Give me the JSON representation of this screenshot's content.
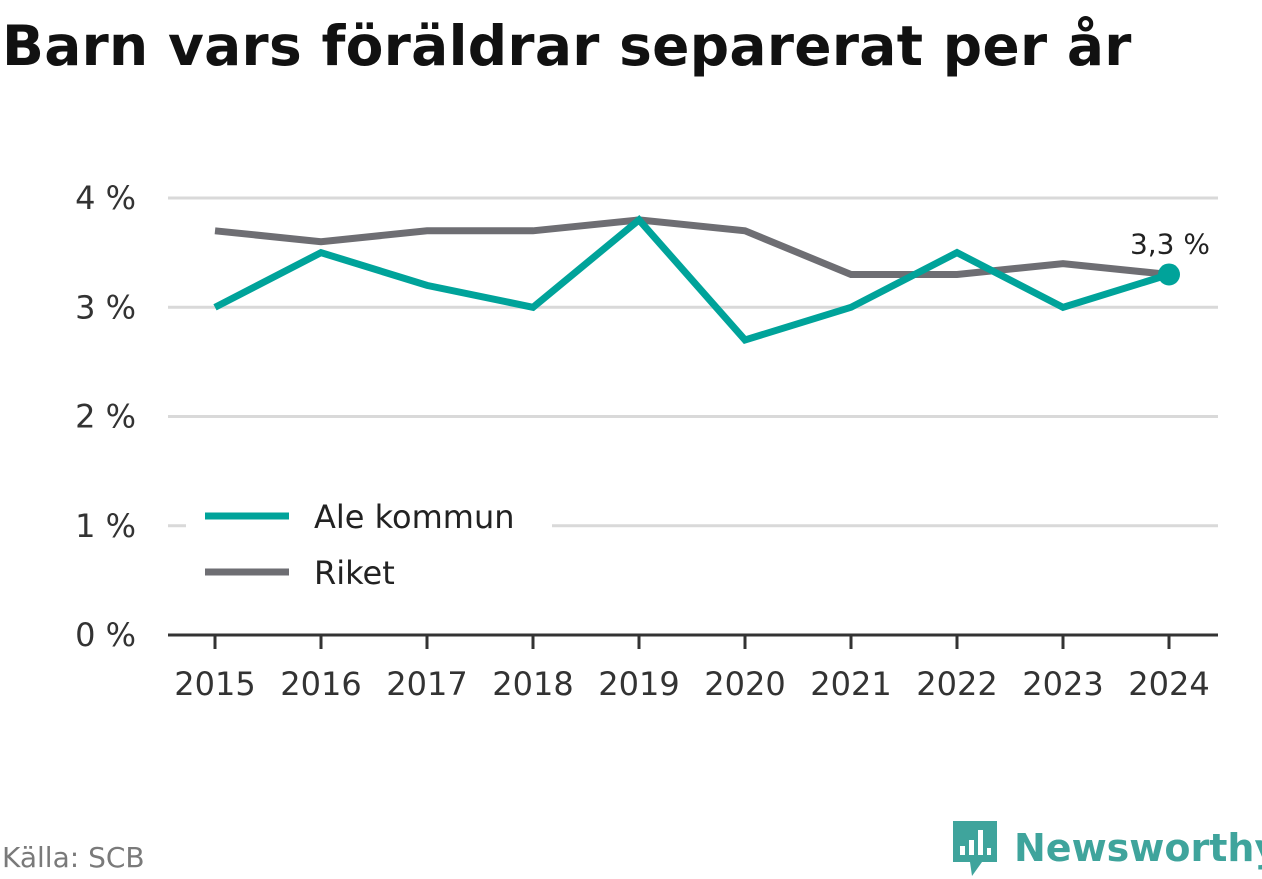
{
  "title": "Barn vars föräldrar separerat per år",
  "source": "Källa: SCB",
  "brand": {
    "name": "Newsworthy",
    "icon": "newsworthy-logo-icon",
    "color": "#3fa49c"
  },
  "chart_data": {
    "type": "line",
    "title": "Barn vars föräldrar separerat per år",
    "x": [
      "2015",
      "2016",
      "2017",
      "2018",
      "2019",
      "2020",
      "2021",
      "2022",
      "2023",
      "2024"
    ],
    "ylim": [
      0,
      4
    ],
    "yticks": [
      0,
      1,
      2,
      3,
      4
    ],
    "ytick_labels": [
      "0 %",
      "1 %",
      "2 %",
      "3 %",
      "4 %"
    ],
    "grid": true,
    "legend_position": "bottom-left",
    "series": [
      {
        "name": "Ale kommun",
        "color": "#00a39a",
        "values": [
          3.0,
          3.5,
          3.2,
          3.0,
          3.8,
          2.7,
          3.0,
          3.5,
          3.0,
          3.3
        ]
      },
      {
        "name": "Riket",
        "color": "#6e6e73",
        "values": [
          3.7,
          3.6,
          3.7,
          3.7,
          3.8,
          3.7,
          3.3,
          3.3,
          3.4,
          3.3
        ]
      }
    ],
    "annotations": [
      {
        "series": "Ale kommun",
        "x": "2024",
        "label": "3,3 %"
      }
    ]
  }
}
